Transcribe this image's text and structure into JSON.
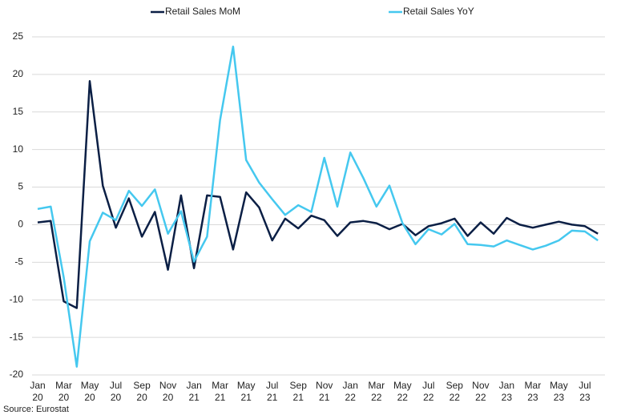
{
  "chart_data": {
    "type": "line",
    "source": "Source: Eurostat",
    "categories": [
      "Jan 20",
      null,
      "Mar 20",
      null,
      "May 20",
      null,
      "Jul 20",
      null,
      "Sep 20",
      null,
      "Nov 20",
      null,
      "Jan 21",
      null,
      "Mar 21",
      null,
      "May 21",
      null,
      "Jul 21",
      null,
      "Sep 21",
      null,
      "Nov 21",
      null,
      "Jan 22",
      null,
      "Mar 22",
      null,
      "May 22",
      null,
      "Jul 22",
      null,
      "Sep 22",
      null,
      "Nov 22",
      null,
      "Jan 23",
      null,
      "Mar 23",
      null,
      "May 23",
      null,
      "Jul 23",
      null
    ],
    "series": [
      {
        "name": "Retail Sales MoM",
        "color": "#0b1f45",
        "values": [
          0.3,
          0.5,
          -10.2,
          -11.1,
          19.1,
          5.2,
          -0.4,
          3.5,
          -1.6,
          1.7,
          -6.0,
          3.9,
          -5.8,
          3.9,
          3.7,
          -3.3,
          4.3,
          2.3,
          -2.1,
          0.8,
          -0.5,
          1.2,
          0.6,
          -1.5,
          0.3,
          0.5,
          0.2,
          -0.6,
          0.1,
          -1.4,
          -0.2,
          0.2,
          0.8,
          -1.5,
          0.3,
          -1.2,
          0.9,
          0.0,
          -0.4,
          0.0,
          0.4,
          0.0,
          -0.2,
          -1.2
        ]
      },
      {
        "name": "Retail Sales YoY",
        "color": "#45c8ef",
        "values": [
          2.1,
          2.4,
          -7.0,
          -18.9,
          -2.2,
          1.6,
          0.6,
          4.5,
          2.5,
          4.7,
          -1.2,
          1.8,
          -4.9,
          -1.6,
          13.9,
          23.7,
          8.6,
          5.6,
          3.4,
          1.3,
          2.6,
          1.7,
          8.9,
          2.4,
          9.6,
          6.2,
          2.4,
          5.2,
          0.2,
          -2.6,
          -0.6,
          -1.3,
          0.1,
          -2.6,
          -2.7,
          -2.9,
          -2.1,
          -2.7,
          -3.3,
          -2.8,
          -2.1,
          -0.8,
          -0.9,
          -2.1
        ]
      }
    ],
    "ylim": [
      -20,
      25
    ],
    "yticks": [
      -20,
      -15,
      -10,
      -5,
      0,
      5,
      10,
      15,
      20,
      25
    ],
    "grid": true,
    "legend": "top"
  }
}
